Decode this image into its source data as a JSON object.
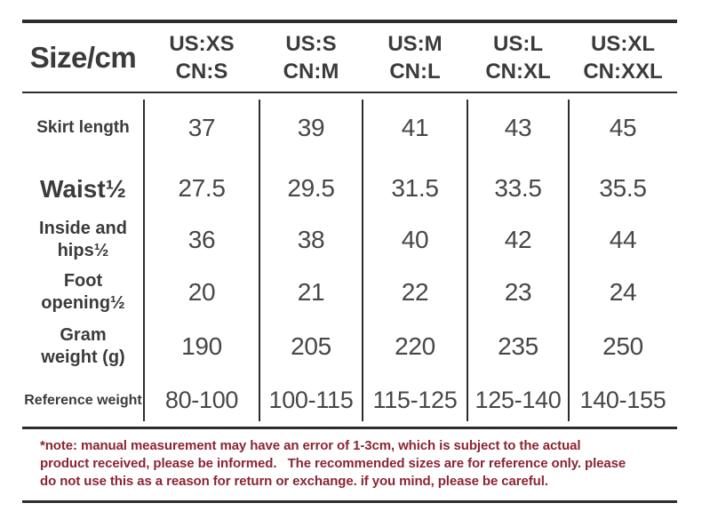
{
  "colors": {
    "text": "#3b3b3b",
    "value_text": "#474747",
    "rule": "#2d2d2d",
    "note_text": "#8b2533",
    "background": "#ffffff"
  },
  "table": {
    "corner_label": "Size/cm",
    "size_columns": [
      {
        "us": "US:XS",
        "cn": "CN:S"
      },
      {
        "us": "US:S",
        "cn": "CN:M"
      },
      {
        "us": "US:M",
        "cn": "CN:L"
      },
      {
        "us": "US:L",
        "cn": "CN:XL"
      },
      {
        "us": "US:XL",
        "cn": "CN:XXL"
      }
    ],
    "rows": [
      {
        "label": "Skirt length",
        "values": [
          "37",
          "39",
          "41",
          "43",
          "45"
        ]
      },
      {
        "label": "Waist½",
        "values": [
          "27.5",
          "29.5",
          "31.5",
          "33.5",
          "35.5"
        ]
      },
      {
        "label": "Inside and hips½",
        "values": [
          "36",
          "38",
          "40",
          "42",
          "44"
        ]
      },
      {
        "label": "Foot opening½",
        "values": [
          "20",
          "21",
          "22",
          "23",
          "24"
        ]
      },
      {
        "label": "Gram weight (g)",
        "values": [
          "190",
          "205",
          "220",
          "235",
          "250"
        ]
      },
      {
        "label": "Reference weight",
        "values": [
          "80-100",
          "100-115",
          "115-125",
          "125-140",
          "140-155"
        ]
      }
    ]
  },
  "note": {
    "full_text": "*note: manual measurement may have an error of 1-3cm, which is subject to the actual product received, please be informed.   The recommended sizes are for reference only. please do not use this as a reason for return or exchange. if you mind, please be careful.",
    "lines": [
      "*note: manual measurement may have an error of 1-3cm, which is subject to the actual",
      "product received, please be informed.   The recommended sizes are for reference only. please",
      "do not use this as a reason for return or exchange. if you mind, please be careful."
    ]
  },
  "chart_data": {
    "type": "table",
    "title": "Size/cm",
    "columns": [
      "US:XS CN:S",
      "US:S CN:M",
      "US:M CN:L",
      "US:L CN:XL",
      "US:XL CN:XXL"
    ],
    "rows": [
      {
        "label": "Skirt length",
        "values": [
          37,
          39,
          41,
          43,
          45
        ]
      },
      {
        "label": "Waist½",
        "values": [
          27.5,
          29.5,
          31.5,
          33.5,
          35.5
        ]
      },
      {
        "label": "Inside and hips½",
        "values": [
          36,
          38,
          40,
          42,
          44
        ]
      },
      {
        "label": "Foot opening½",
        "values": [
          20,
          21,
          22,
          23,
          24
        ]
      },
      {
        "label": "Gram weight (g)",
        "values": [
          190,
          205,
          220,
          235,
          250
        ]
      },
      {
        "label": "Reference weight",
        "values": [
          "80-100",
          "100-115",
          "115-125",
          "125-140",
          "140-155"
        ]
      }
    ]
  }
}
